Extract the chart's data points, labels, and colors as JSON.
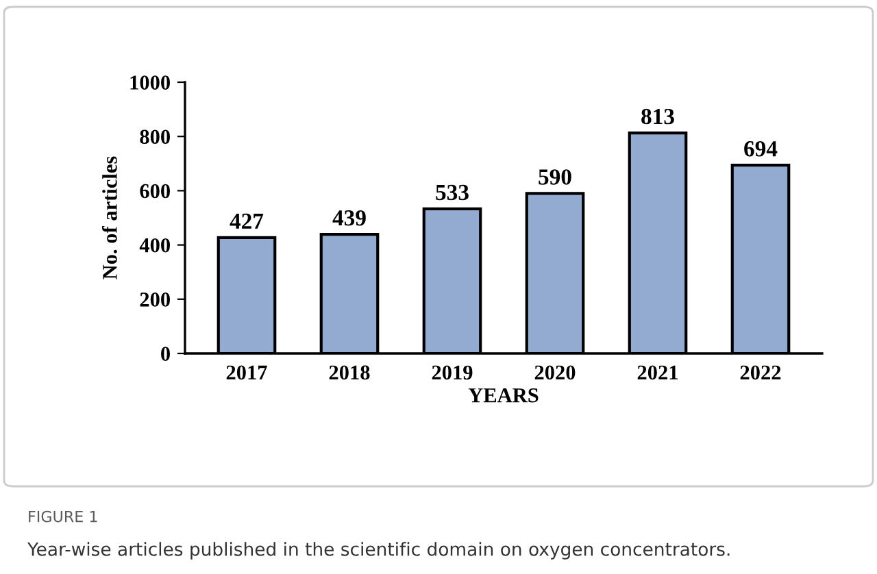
{
  "chart_data": {
    "type": "bar",
    "xlabel": "YEARS",
    "ylabel": "No. of articles",
    "categories": [
      "2017",
      "2018",
      "2019",
      "2020",
      "2021",
      "2022"
    ],
    "values": [
      427,
      439,
      533,
      590,
      813,
      694
    ],
    "color": "#93abd1",
    "ylim": [
      0,
      1000
    ],
    "yticks": [
      0,
      200,
      400,
      600,
      800,
      1000
    ],
    "grid": false,
    "data_labels": true,
    "annotations": [
      "FIGURE 1",
      "Year-wise articles published in the scientific domain on oxygen concentrators."
    ]
  }
}
